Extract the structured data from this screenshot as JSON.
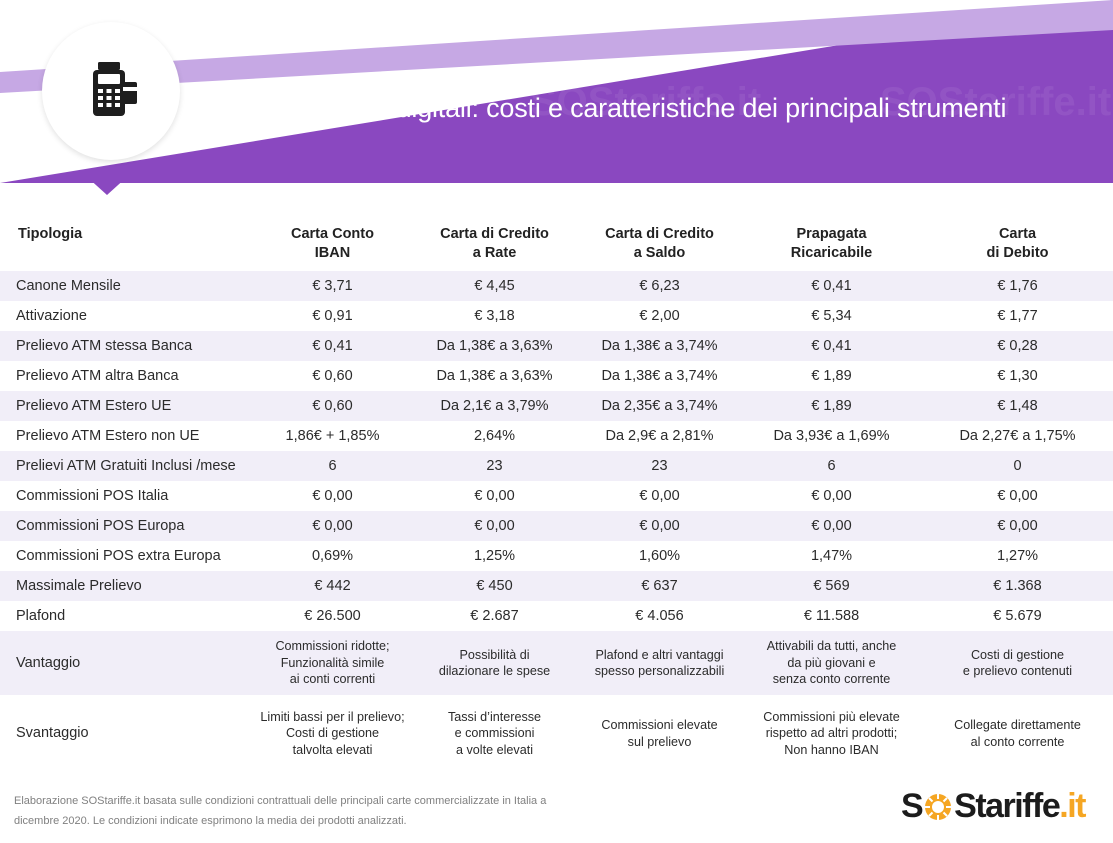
{
  "header": {
    "title": "Pagamenti digitali: costi e caratteristiche dei principali strumenti",
    "icon": "pos-terminal-icon",
    "colors": {
      "primary": "#8a48c0",
      "accent_stripe": "#c6a8e4"
    },
    "watermark": "SOStariffe.it"
  },
  "table": {
    "headers": [
      {
        "l1": "Tipologia",
        "l2": ""
      },
      {
        "l1": "Carta Conto",
        "l2": "IBAN"
      },
      {
        "l1": "Carta di Credito",
        "l2": "a Rate"
      },
      {
        "l1": "Carta di Credito",
        "l2": "a Saldo"
      },
      {
        "l1": "Prapagata",
        "l2": "Ricaricabile"
      },
      {
        "l1": "Carta",
        "l2": "di Debito"
      }
    ],
    "rows": [
      [
        "Canone Mensile",
        "€ 3,71",
        "€ 4,45",
        "€ 6,23",
        "€ 0,41",
        "€ 1,76"
      ],
      [
        "Attivazione",
        "€ 0,91",
        "€ 3,18",
        "€ 2,00",
        "€ 5,34",
        "€ 1,77"
      ],
      [
        "Prelievo ATM stessa Banca",
        "€ 0,41",
        "Da 1,38€ a 3,63%",
        "Da 1,38€ a 3,74%",
        "€ 0,41",
        "€ 0,28"
      ],
      [
        "Prelievo ATM altra Banca",
        "€ 0,60",
        "Da 1,38€ a 3,63%",
        "Da 1,38€ a 3,74%",
        "€ 1,89",
        "€ 1,30"
      ],
      [
        "Prelievo ATM Estero UE",
        "€ 0,60",
        "Da 2,1€ a 3,79%",
        "Da 2,35€ a 3,74%",
        "€ 1,89",
        "€ 1,48"
      ],
      [
        "Prelievo ATM Estero non UE",
        "1,86€ + 1,85%",
        "2,64%",
        "Da 2,9€ a 2,81%",
        "Da 3,93€ a 1,69%",
        "Da 2,27€ a 1,75%"
      ],
      [
        "Prelievi ATM Gratuiti Inclusi /mese",
        "6",
        "23",
        "23",
        "6",
        "0"
      ],
      [
        "Commissioni POS Italia",
        "€ 0,00",
        "€ 0,00",
        "€ 0,00",
        "€ 0,00",
        "€ 0,00"
      ],
      [
        "Commissioni POS Europa",
        "€ 0,00",
        "€ 0,00",
        "€ 0,00",
        "€ 0,00",
        "€ 0,00"
      ],
      [
        "Commissioni POS extra Europa",
        "0,69%",
        "1,25%",
        "1,60%",
        "1,47%",
        "1,27%"
      ],
      [
        "Massimale Prelievo",
        "€ 442",
        "€ 450",
        "€ 637",
        "€ 569",
        "€ 1.368"
      ],
      [
        "Plafond",
        "€ 26.500",
        "€ 2.687",
        "€ 4.056",
        "€ 11.588",
        "€ 5.679"
      ]
    ],
    "vantaggio": {
      "label": "Vantaggio",
      "cells": [
        [
          "Commissioni ridotte;",
          "Funzionalità simile",
          "ai conti correnti"
        ],
        [
          "Possibilità di",
          "dilazionare le spese"
        ],
        [
          "Plafond e altri vantaggi",
          "spesso personalizzabili"
        ],
        [
          "Attivabili da tutti, anche",
          "da più giovani e",
          "senza conto corrente"
        ],
        [
          "Costi di gestione",
          "e prelievo contenuti"
        ]
      ]
    },
    "svantaggio": {
      "label": "Svantaggio",
      "cells": [
        [
          "Limiti bassi per il prelievo;",
          "Costi di gestione",
          "talvolta elevati"
        ],
        [
          "Tassi d’interesse",
          "e commissioni",
          "a volte elevati"
        ],
        [
          "Commissioni elevate",
          "sul prelievo"
        ],
        [
          "Commissioni più elevate",
          "rispetto ad altri prodotti;",
          "Non hanno IBAN"
        ],
        [
          "Collegate direttamente",
          "al conto corrente"
        ]
      ]
    }
  },
  "footer": {
    "note_line1": "Elaborazione SOStariffe.it basata sulle condizioni contrattuali delle principali carte commercializzate in Italia a",
    "note_line2": "dicembre 2020. Le condizioni indicate esprimono la media dei prodotti analizzati.",
    "brand_s": "S",
    "brand_rest": "Stariffe",
    "brand_tld": ".it",
    "brand_colors": {
      "text": "#1c1c1c",
      "star": "#f5a623"
    }
  }
}
